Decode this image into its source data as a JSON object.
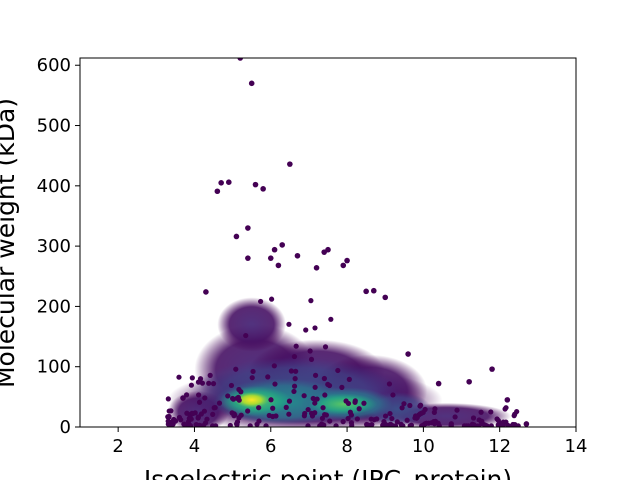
{
  "chart_data": {
    "type": "scatter",
    "title": "",
    "xlabel": "Isoelectric point (IPC_protein)",
    "ylabel": "Molecular weight (kDa)",
    "xlim": [
      1,
      14
    ],
    "ylim": [
      0,
      612
    ],
    "xticks": [
      "2",
      "4",
      "6",
      "8",
      "10",
      "12",
      "14"
    ],
    "yticks": [
      "0",
      "100",
      "200",
      "300",
      "400",
      "500",
      "600"
    ],
    "xtick_values": [
      2,
      4,
      6,
      8,
      10,
      12,
      14
    ],
    "ytick_values": [
      0,
      100,
      200,
      300,
      400,
      500,
      600
    ],
    "grid": false,
    "colormap": "viridis",
    "colors": {
      "low_density": "#440154",
      "mid_density": "#21918c",
      "high_density": "#fde725"
    },
    "density_peaks": [
      {
        "x": 5.5,
        "y": 45
      },
      {
        "x": 7.8,
        "y": 38
      }
    ],
    "outliers": [
      {
        "x": 5.2,
        "y": 612
      },
      {
        "x": 5.5,
        "y": 570
      },
      {
        "x": 6.5,
        "y": 436
      },
      {
        "x": 4.7,
        "y": 405
      },
      {
        "x": 4.9,
        "y": 406
      },
      {
        "x": 5.6,
        "y": 402
      },
      {
        "x": 5.8,
        "y": 395
      },
      {
        "x": 4.6,
        "y": 391
      },
      {
        "x": 5.4,
        "y": 330
      },
      {
        "x": 5.1,
        "y": 316
      },
      {
        "x": 6.3,
        "y": 302
      },
      {
        "x": 6.1,
        "y": 294
      },
      {
        "x": 7.5,
        "y": 294
      },
      {
        "x": 7.4,
        "y": 290
      },
      {
        "x": 6.7,
        "y": 284
      },
      {
        "x": 6.0,
        "y": 280
      },
      {
        "x": 5.4,
        "y": 280
      },
      {
        "x": 8.0,
        "y": 276
      },
      {
        "x": 7.9,
        "y": 268
      },
      {
        "x": 7.2,
        "y": 264
      },
      {
        "x": 6.2,
        "y": 268
      },
      {
        "x": 4.3,
        "y": 224
      },
      {
        "x": 9.0,
        "y": 215
      },
      {
        "x": 8.5,
        "y": 225
      },
      {
        "x": 8.7,
        "y": 226
      },
      {
        "x": 9.6,
        "y": 121
      },
      {
        "x": 11.8,
        "y": 96
      },
      {
        "x": 12.7,
        "y": 5
      },
      {
        "x": 11.2,
        "y": 75
      },
      {
        "x": 10.4,
        "y": 72
      },
      {
        "x": 12.2,
        "y": 45
      },
      {
        "x": 3.5,
        "y": 10
      },
      {
        "x": 3.7,
        "y": 48
      }
    ]
  }
}
